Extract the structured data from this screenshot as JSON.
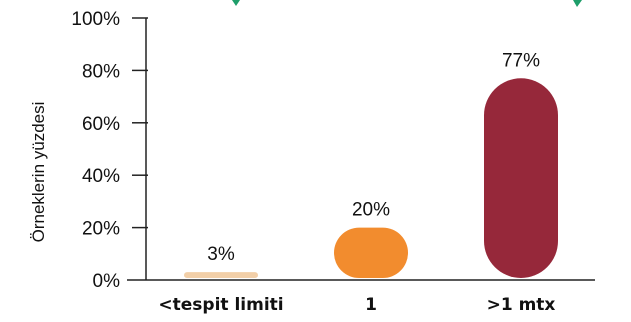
{
  "chart_data": {
    "type": "bar",
    "title": "",
    "categories": [
      "<tespit limiti",
      "1",
      ">1 mtx"
    ],
    "values": [
      3,
      20,
      77
    ],
    "data_labels": [
      "3%",
      "20%",
      "77%"
    ],
    "colors": [
      "#F2CFA8",
      "#F28C2E",
      "#96283A"
    ],
    "ylabel": "Örneklerin yüzdesi",
    "xlabel": "",
    "ylim": [
      0,
      100
    ],
    "y_ticks": [
      0,
      20,
      40,
      60,
      80,
      100
    ],
    "y_tick_labels": [
      "0%",
      "20%",
      "40%",
      "60%",
      "80%",
      "100%"
    ],
    "grid": false,
    "legend": "none"
  }
}
